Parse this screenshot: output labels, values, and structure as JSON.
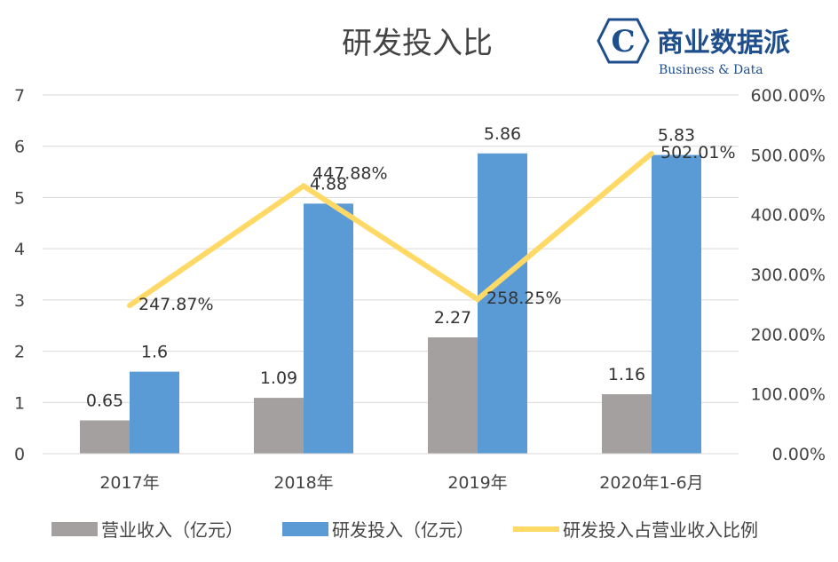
{
  "logo": {
    "name": "商业数据派",
    "subtitle": "Business & Data",
    "letter": "C",
    "color": "#1f4e8c"
  },
  "chart_data": {
    "type": "bar",
    "title": "研发投入比",
    "categories": [
      "2017年",
      "2018年",
      "2019年",
      "2020年1-6月"
    ],
    "series": [
      {
        "name": "营业收入（亿元）",
        "type": "bar",
        "axis": "left",
        "color": "#a5a0a0",
        "values": [
          0.65,
          1.09,
          2.27,
          1.16
        ],
        "labels": [
          "0.65",
          "1.09",
          "2.27",
          "1.16"
        ]
      },
      {
        "name": "研发投入（亿元）",
        "type": "bar",
        "axis": "left",
        "color": "#5b9bd5",
        "values": [
          1.6,
          4.88,
          5.86,
          5.83
        ],
        "labels": [
          "1.6",
          "4.88",
          "5.86",
          "5.83"
        ]
      },
      {
        "name": "研发投入占营业收入比例",
        "type": "line",
        "axis": "right",
        "color": "#ffd966",
        "values": [
          247.87,
          447.88,
          258.25,
          502.01
        ],
        "labels": [
          "247.87%",
          "447.88%",
          "258.25%",
          "502.01%"
        ]
      }
    ],
    "y_left": {
      "range": [
        0,
        7
      ],
      "ticks": [
        "0",
        "1",
        "2",
        "3",
        "4",
        "5",
        "6",
        "7"
      ]
    },
    "y_right": {
      "range": [
        0,
        600
      ],
      "ticks": [
        "0.00%",
        "100.00%",
        "200.00%",
        "300.00%",
        "400.00%",
        "500.00%",
        "600.00%"
      ]
    },
    "grid": true,
    "legend_position": "bottom"
  }
}
